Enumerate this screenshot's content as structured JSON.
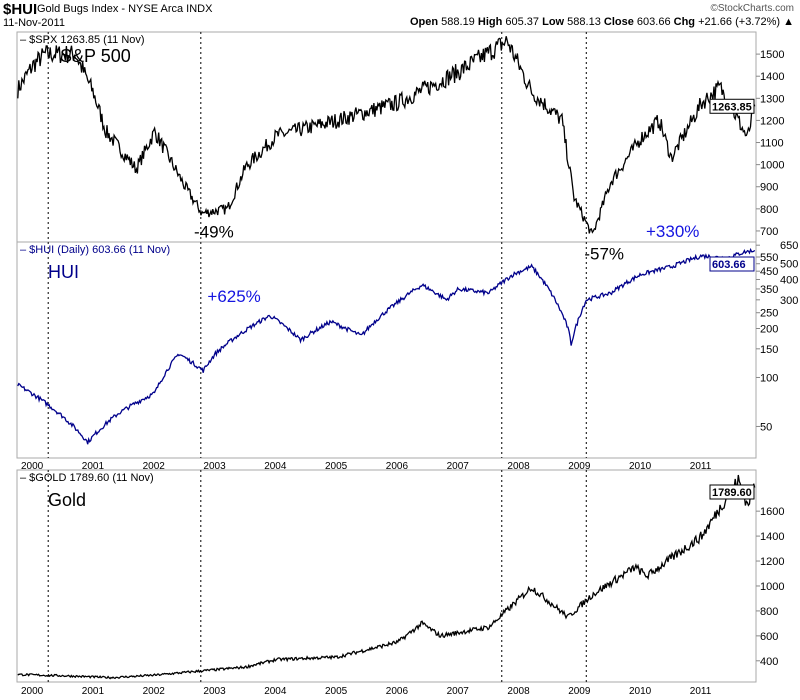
{
  "header": {
    "symbol": "$HUI",
    "name": "Gold Bugs Index - NYSE Arca INDX",
    "date": "11-Nov-2011",
    "brand": "©StockCharts.com",
    "open_label": "Open",
    "open": "588.19",
    "high_label": "High",
    "high": "605.37",
    "low_label": "Low",
    "low": "588.13",
    "close_label": "Close",
    "close": "603.66",
    "chg_label": "Chg",
    "chg": "+21.66 (+3.72%)"
  },
  "chart_data": [
    {
      "type": "line",
      "legend": "$SPX 1263.85 (11 Nov)",
      "title": "S&P 500",
      "last_label": "1263.85",
      "scale": "linear",
      "ylim": [
        650,
        1600
      ],
      "yticks": [
        700,
        800,
        900,
        1000,
        1100,
        1200,
        1300,
        1400,
        1500
      ],
      "annotations": [
        {
          "text": "-49%",
          "x": 2002.78,
          "y": 780
        },
        {
          "text": "-57%",
          "x": 2009.2,
          "y": 680
        }
      ],
      "x": [
        1999.75,
        2000.0,
        2000.2,
        2000.7,
        2001.0,
        2001.2,
        2001.7,
        2002.0,
        2002.5,
        2002.78,
        2003.2,
        2003.5,
        2004.0,
        2005.0,
        2006.0,
        2007.0,
        2007.8,
        2008.2,
        2008.7,
        2008.9,
        2009.2,
        2009.5,
        2010.0,
        2010.3,
        2010.5,
        2011.0,
        2011.3,
        2011.6,
        2011.75,
        2011.87
      ],
      "values": [
        1340,
        1450,
        1500,
        1500,
        1320,
        1150,
        980,
        1150,
        900,
        780,
        800,
        990,
        1130,
        1200,
        1280,
        1420,
        1560,
        1330,
        1200,
        850,
        680,
        920,
        1120,
        1200,
        1030,
        1280,
        1350,
        1200,
        1120,
        1264
      ]
    },
    {
      "type": "line",
      "legend": "$HUI (Daily) 603.66 (11 Nov)",
      "title": "HUI",
      "last_label": "603.66",
      "scale": "log",
      "ylim": [
        32,
        680
      ],
      "yticks": [
        50,
        100,
        150,
        200,
        250,
        300,
        350,
        400,
        450,
        500,
        550,
        650
      ],
      "annotations": [
        {
          "text": "+625%",
          "x": 2003.0,
          "y": 260
        },
        {
          "text": "+330%",
          "x": 2011.1,
          "y": 650
        }
      ],
      "x": [
        1999.75,
        2000.2,
        2000.9,
        2001.4,
        2002.0,
        2002.4,
        2002.8,
        2003.0,
        2003.9,
        2004.4,
        2004.9,
        2005.4,
        2006.0,
        2006.4,
        2006.8,
        2007.0,
        2007.5,
        2007.9,
        2008.2,
        2008.8,
        2008.85,
        2009.1,
        2009.5,
        2010.0,
        2010.5,
        2011.0,
        2011.4,
        2011.7,
        2011.87
      ],
      "values": [
        90,
        70,
        40,
        60,
        80,
        140,
        110,
        140,
        240,
        170,
        220,
        180,
        290,
        370,
        300,
        350,
        330,
        430,
        480,
        200,
        160,
        300,
        330,
        430,
        480,
        560,
        540,
        590,
        604
      ]
    },
    {
      "type": "line",
      "legend": "$GOLD 1789.60 (11 Nov)",
      "title": "Gold",
      "last_label": "1789.60",
      "scale": "linear",
      "ylim": [
        230,
        1930
      ],
      "yticks": [
        400,
        600,
        800,
        1000,
        1200,
        1400,
        1600
      ],
      "x": [
        1999.75,
        2000.5,
        2001.3,
        2002.0,
        2002.8,
        2003.5,
        2004.0,
        2005.0,
        2006.0,
        2006.4,
        2006.7,
        2007.5,
        2008.2,
        2008.8,
        2009.2,
        2009.9,
        2010.1,
        2011.0,
        2011.6,
        2011.75,
        2011.87
      ],
      "values": [
        290,
        280,
        265,
        285,
        320,
        350,
        410,
        430,
        550,
        700,
        600,
        670,
        990,
        750,
        930,
        1150,
        1080,
        1400,
        1850,
        1650,
        1790
      ]
    }
  ],
  "xaxis": {
    "ticks": [
      "2000",
      "2001",
      "2002",
      "2003",
      "2004",
      "2005",
      "2006",
      "2007",
      "2008",
      "2009",
      "2010",
      "2011"
    ]
  },
  "markers": [
    2000.25,
    2002.76,
    2007.71,
    2009.1
  ]
}
